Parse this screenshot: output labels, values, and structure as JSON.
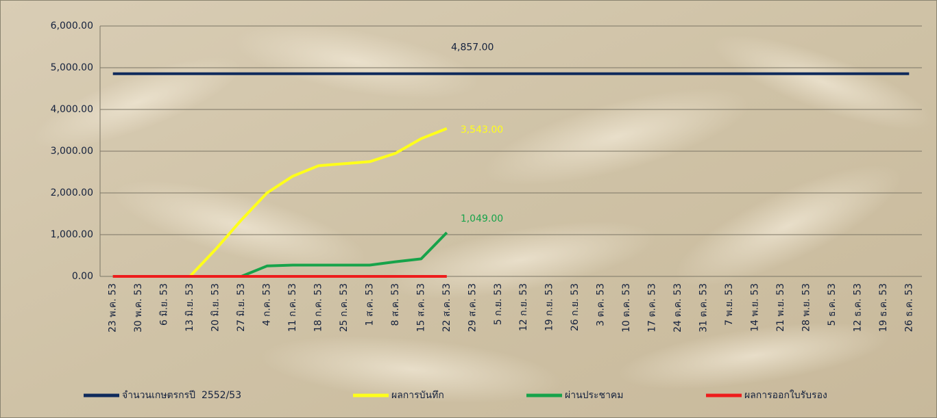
{
  "chart_data": {
    "type": "line",
    "categories": [
      "23 พ.ค. 53",
      "30 พ.ค. 53",
      "6 มิ.ย. 53",
      "13 มิ.ย. 53",
      "20 มิ.ย. 53",
      "27 มิ.ย. 53",
      "4 ก.ค. 53",
      "11 ก.ค. 53",
      "18 ก.ค. 53",
      "25 ก.ค. 53",
      "1 ส.ค. 53",
      "8 ส.ค. 53",
      "15 ส.ค. 53",
      "22 ส.ค. 53",
      "29 ส.ค. 53",
      "5 ก.ย. 53",
      "12 ก.ย. 53",
      "19 ก.ย. 53",
      "26 ก.ย. 53",
      "3 ต.ค. 53",
      "10 ต.ค. 53",
      "17 ต.ค. 53",
      "24 ต.ค. 53",
      "31 ต.ค. 53",
      "7 พ.ย. 53",
      "14 พ.ย. 53",
      "21 พ.ย. 53",
      "28 พ.ย. 53",
      "5 ธ.ค. 53",
      "12 ธ.ค. 53",
      "19 ธ.ค. 53",
      "26 ธ.ค. 53"
    ],
    "series": [
      {
        "name": "จำนวนเกษตรกรปี  2552/53",
        "color": "#0f2a5c",
        "values": [
          4857,
          4857,
          4857,
          4857,
          4857,
          4857,
          4857,
          4857,
          4857,
          4857,
          4857,
          4857,
          4857,
          4857,
          4857,
          4857,
          4857,
          4857,
          4857,
          4857,
          4857,
          4857,
          4857,
          4857,
          4857,
          4857,
          4857,
          4857,
          4857,
          4857,
          4857,
          4857
        ],
        "value_labels": [
          null,
          null,
          null,
          null,
          null,
          null,
          null,
          null,
          null,
          null,
          null,
          null,
          null,
          null,
          "4,857.00",
          null,
          null,
          null,
          null,
          null,
          null,
          null,
          null,
          null,
          null,
          null,
          null,
          null,
          null,
          null,
          null,
          null
        ]
      },
      {
        "name": "ผลการบันทึก",
        "color": "#ffff1a",
        "values": [
          0,
          0,
          0,
          0,
          650,
          1350,
          2000,
          2400,
          2650,
          2700,
          2750,
          2950,
          3300,
          3543,
          null,
          null,
          null,
          null,
          null,
          null,
          null,
          null,
          null,
          null,
          null,
          null,
          null,
          null,
          null,
          null,
          null,
          null
        ],
        "value_labels": [
          null,
          null,
          null,
          null,
          null,
          null,
          null,
          null,
          null,
          null,
          null,
          null,
          null,
          "3,543.00",
          null,
          null,
          null,
          null,
          null,
          null,
          null,
          null,
          null,
          null,
          null,
          null,
          null,
          null,
          null,
          null,
          null,
          null
        ]
      },
      {
        "name": "ผ่านประชาคม",
        "color": "#17a34a",
        "values": [
          0,
          0,
          0,
          0,
          0,
          0,
          250,
          270,
          270,
          270,
          270,
          350,
          420,
          1049,
          null,
          null,
          null,
          null,
          null,
          null,
          null,
          null,
          null,
          null,
          null,
          null,
          null,
          null,
          null,
          null,
          null,
          null
        ],
        "value_labels": [
          null,
          null,
          null,
          null,
          null,
          null,
          null,
          null,
          null,
          null,
          null,
          null,
          null,
          "1,049.00",
          null,
          null,
          null,
          null,
          null,
          null,
          null,
          null,
          null,
          null,
          null,
          null,
          null,
          null,
          null,
          null,
          null,
          null
        ]
      },
      {
        "name": "ผลการออกใบรับรอง",
        "color": "#ee1c1c",
        "values": [
          0,
          0,
          0,
          0,
          0,
          0,
          0,
          0,
          0,
          0,
          0,
          0,
          0,
          0,
          null,
          null,
          null,
          null,
          null,
          null,
          null,
          null,
          null,
          null,
          null,
          null,
          null,
          null,
          null,
          null,
          null,
          null
        ]
      }
    ],
    "ylim": [
      0,
      6000
    ],
    "yticks": [
      {
        "value": 0,
        "label": "0.00"
      },
      {
        "value": 1000,
        "label": "1,000.00"
      },
      {
        "value": 2000,
        "label": "2,000.00"
      },
      {
        "value": 3000,
        "label": "3,000.00"
      },
      {
        "value": 4000,
        "label": "4,000.00"
      },
      {
        "value": 5000,
        "label": "5,000.00"
      },
      {
        "value": 6000,
        "label": "6,000.00"
      }
    ],
    "grid": true,
    "legend": "bottom"
  }
}
